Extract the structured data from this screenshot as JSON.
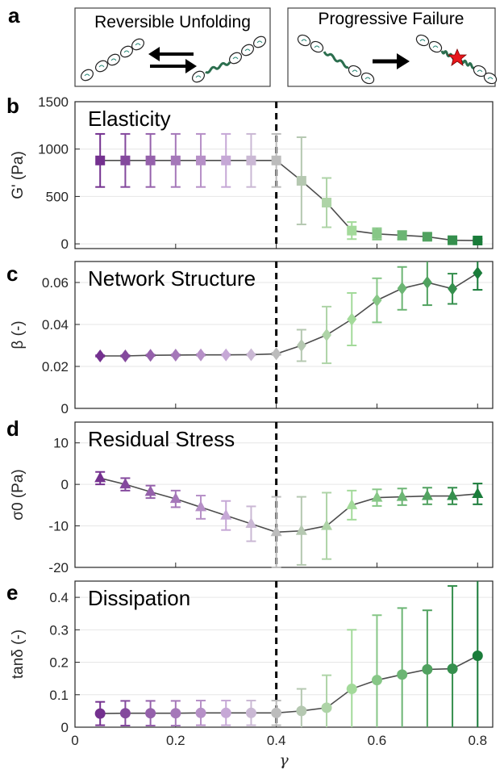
{
  "panel_letters": [
    "a",
    "b",
    "c",
    "d",
    "e"
  ],
  "schematic": {
    "left_title": "Reversible Unfolding",
    "right_title": "Progressive Failure"
  },
  "colors": {
    "purple_dark": "#74318f",
    "gray_mid": "#bcbcbc",
    "green_dark": "#1a7c3a",
    "line": "#4d4d4d",
    "threshold_line": "#000000"
  },
  "threshold_gamma": 0.4,
  "chart_data": [
    {
      "type": "line",
      "panel": "b",
      "title": "Elasticity",
      "ylabel": "G' (Pa)",
      "marker": "square",
      "ylim": [
        -50,
        1500
      ],
      "yticks": [
        0,
        500,
        1000,
        1500
      ],
      "show_xticks": false,
      "x": [
        0.05,
        0.1,
        0.15,
        0.2,
        0.25,
        0.3,
        0.35,
        0.4,
        0.45,
        0.5,
        0.55,
        0.6,
        0.65,
        0.7,
        0.75,
        0.8
      ],
      "y": [
        880,
        880,
        880,
        880,
        880,
        880,
        880,
        880,
        665,
        435,
        140,
        105,
        90,
        75,
        38,
        35
      ],
      "yerr": [
        280,
        280,
        280,
        280,
        280,
        280,
        280,
        280,
        460,
        260,
        90,
        60,
        45,
        30,
        15,
        15
      ]
    },
    {
      "type": "line",
      "panel": "c",
      "title": "Network Structure",
      "ylabel": "β (-)",
      "marker": "diamond",
      "ylim": [
        0,
        0.07
      ],
      "yticks": [
        0,
        0.02,
        0.04,
        0.06
      ],
      "ytick_labels": [
        "0",
        "0.02",
        "0.04",
        "0.06"
      ],
      "show_xticks": false,
      "x": [
        0.05,
        0.1,
        0.15,
        0.2,
        0.25,
        0.3,
        0.35,
        0.4,
        0.45,
        0.5,
        0.55,
        0.6,
        0.65,
        0.7,
        0.75,
        0.8
      ],
      "y": [
        0.025,
        0.025,
        0.0253,
        0.0254,
        0.0255,
        0.0255,
        0.0256,
        0.026,
        0.03,
        0.035,
        0.0425,
        0.0515,
        0.0572,
        0.06,
        0.057,
        0.0645
      ],
      "yerr": [
        0.0003,
        0.0003,
        0.0003,
        0.0003,
        0.0003,
        0.0003,
        0.0003,
        0.0005,
        0.0075,
        0.0135,
        0.0125,
        0.0105,
        0.0102,
        0.0108,
        0.0072,
        0.008
      ]
    },
    {
      "type": "line",
      "panel": "d",
      "title": "Residual Stress",
      "ylabel": "σ0 (Pa)",
      "marker": "triangle",
      "ylim": [
        -20,
        15
      ],
      "yticks": [
        -20,
        -10,
        0,
        10
      ],
      "show_xticks": false,
      "x": [
        0.05,
        0.1,
        0.15,
        0.2,
        0.25,
        0.3,
        0.35,
        0.4,
        0.45,
        0.5,
        0.55,
        0.6,
        0.65,
        0.7,
        0.75,
        0.8
      ],
      "y": [
        1.5,
        0,
        -1.8,
        -3.5,
        -5.5,
        -7.5,
        -9.5,
        -11.5,
        -11.2,
        -10,
        -5,
        -3.2,
        -3,
        -2.8,
        -2.8,
        -2.3
      ],
      "yerr": [
        1.5,
        1.5,
        1.5,
        2.0,
        2.8,
        3.5,
        4.2,
        8.5,
        8.2,
        8.0,
        3.5,
        2.0,
        2.0,
        2.0,
        2.0,
        2.5
      ]
    },
    {
      "type": "line",
      "panel": "e",
      "title": "Dissipation",
      "ylabel": "tanδ (-)",
      "xlabel": "γ",
      "marker": "circle",
      "ylim": [
        0,
        0.45
      ],
      "yticks": [
        0,
        0.1,
        0.2,
        0.3,
        0.4
      ],
      "ytick_labels": [
        "0",
        "0.1",
        "0.2",
        "0.3",
        "0.4"
      ],
      "xlim": [
        0,
        0.83
      ],
      "xticks": [
        0,
        0.2,
        0.4,
        0.6,
        0.8
      ],
      "xtick_labels": [
        "0",
        "0.2",
        "0.4",
        "0.6",
        "0.8"
      ],
      "show_xticks": true,
      "x": [
        0.05,
        0.1,
        0.15,
        0.2,
        0.25,
        0.3,
        0.35,
        0.4,
        0.45,
        0.5,
        0.55,
        0.6,
        0.65,
        0.7,
        0.75,
        0.8
      ],
      "y": [
        0.042,
        0.043,
        0.043,
        0.043,
        0.044,
        0.044,
        0.044,
        0.044,
        0.05,
        0.06,
        0.118,
        0.145,
        0.162,
        0.178,
        0.18,
        0.22
      ],
      "yerr": [
        0.036,
        0.038,
        0.038,
        0.038,
        0.038,
        0.038,
        0.038,
        0.038,
        0.068,
        0.1,
        0.182,
        0.2,
        0.205,
        0.182,
        0.255,
        0.24
      ]
    }
  ]
}
